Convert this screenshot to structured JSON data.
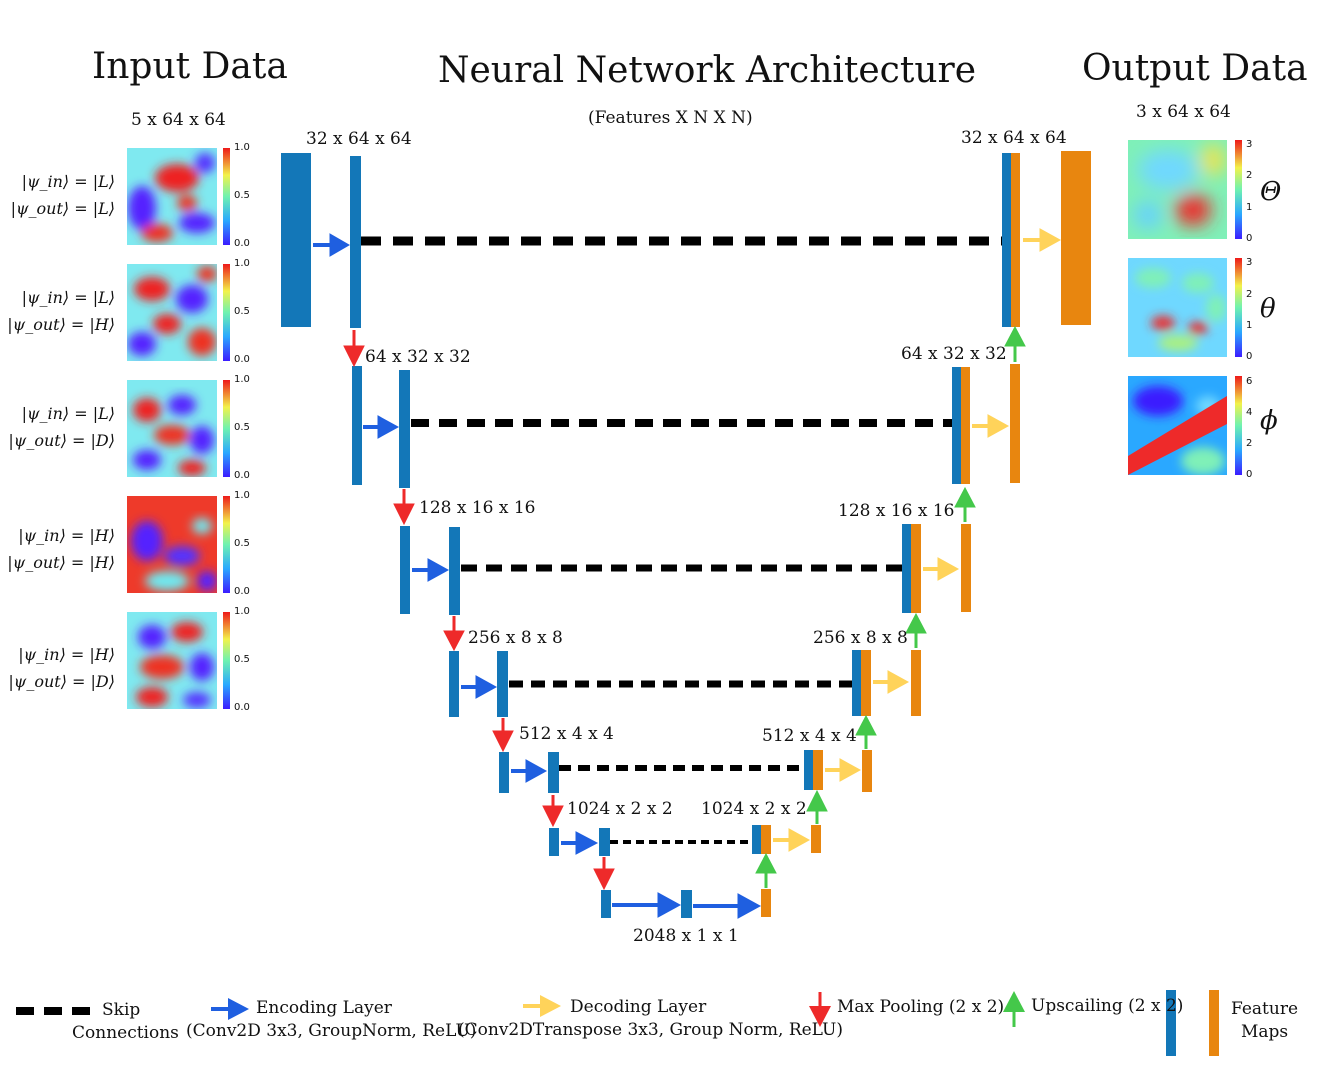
{
  "titles": {
    "input": "Input Data",
    "network": "Neural Network Architecture",
    "output": "Output Data",
    "features_note": "(Features  X  N  X N)"
  },
  "input": {
    "shape": "5 x 64 x 64",
    "colorbar_ticks": [
      "1.0",
      "0.5",
      "0.0"
    ],
    "samples": [
      {
        "psi_in": "|ψ_in⟩ = |L⟩",
        "psi_out": "|ψ_out⟩ = |L⟩"
      },
      {
        "psi_in": "|ψ_in⟩ = |L⟩",
        "psi_out": "|ψ_out⟩ = |H⟩"
      },
      {
        "psi_in": "|ψ_in⟩ = |L⟩",
        "psi_out": "|ψ_out⟩ = |D⟩"
      },
      {
        "psi_in": "|ψ_in⟩ = |H⟩",
        "psi_out": "|ψ_out⟩ = |H⟩"
      },
      {
        "psi_in": "|ψ_in⟩ = |H⟩",
        "psi_out": "|ψ_out⟩ = |D⟩"
      }
    ]
  },
  "output": {
    "shape": "3 x 64 x 64",
    "maps": [
      {
        "symbol": "Θ",
        "ticks": [
          "3",
          "2",
          "1",
          "0"
        ]
      },
      {
        "symbol": "θ",
        "ticks": [
          "3",
          "2",
          "1",
          "0"
        ]
      },
      {
        "symbol": "ϕ",
        "ticks": [
          "6",
          "4",
          "2",
          "0"
        ]
      }
    ]
  },
  "network": {
    "levels": [
      {
        "enc_label": "32 x 64 x 64",
        "dec_label": "32 x 64 x 64"
      },
      {
        "enc_label": "64 x 32 x 32",
        "dec_label": "64 x 32 x 32"
      },
      {
        "enc_label": "128 x 16 x 16",
        "dec_label": "128 x 16 x 16"
      },
      {
        "enc_label": "256 x 8 x 8",
        "dec_label": "256 x 8 x 8"
      },
      {
        "enc_label": "512 x 4 x 4",
        "dec_label": "512 x 4 x 4"
      },
      {
        "enc_label": "1024 x 2 x 2",
        "dec_label": "1024 x 2 x 2"
      }
    ],
    "bottleneck_label": "2048 x 1 x 1",
    "colors": {
      "encoder": "#1377b8",
      "decoder": "#e8860f",
      "encode_arrow": "#1f5fe0",
      "decode_arrow": "#ffd35a",
      "pool_arrow": "#ee2a2a",
      "upsample_arrow": "#44c84a",
      "skip": "#000000"
    }
  },
  "legend": {
    "skip_line1": "Skip",
    "skip_line2": "Connections",
    "enc_line1": "Encoding Layer",
    "enc_line2": "(Conv2D 3x3, GroupNorm, ReLU)",
    "dec_line1": "Decoding Layer",
    "dec_line2": "(Conv2DTranspose 3x3, Group Norm, ReLU)",
    "pool": "Max Pooling (2 x 2)",
    "up": "Upscailing (2 x 2)",
    "fm_line1": "Feature",
    "fm_line2": "Maps"
  }
}
